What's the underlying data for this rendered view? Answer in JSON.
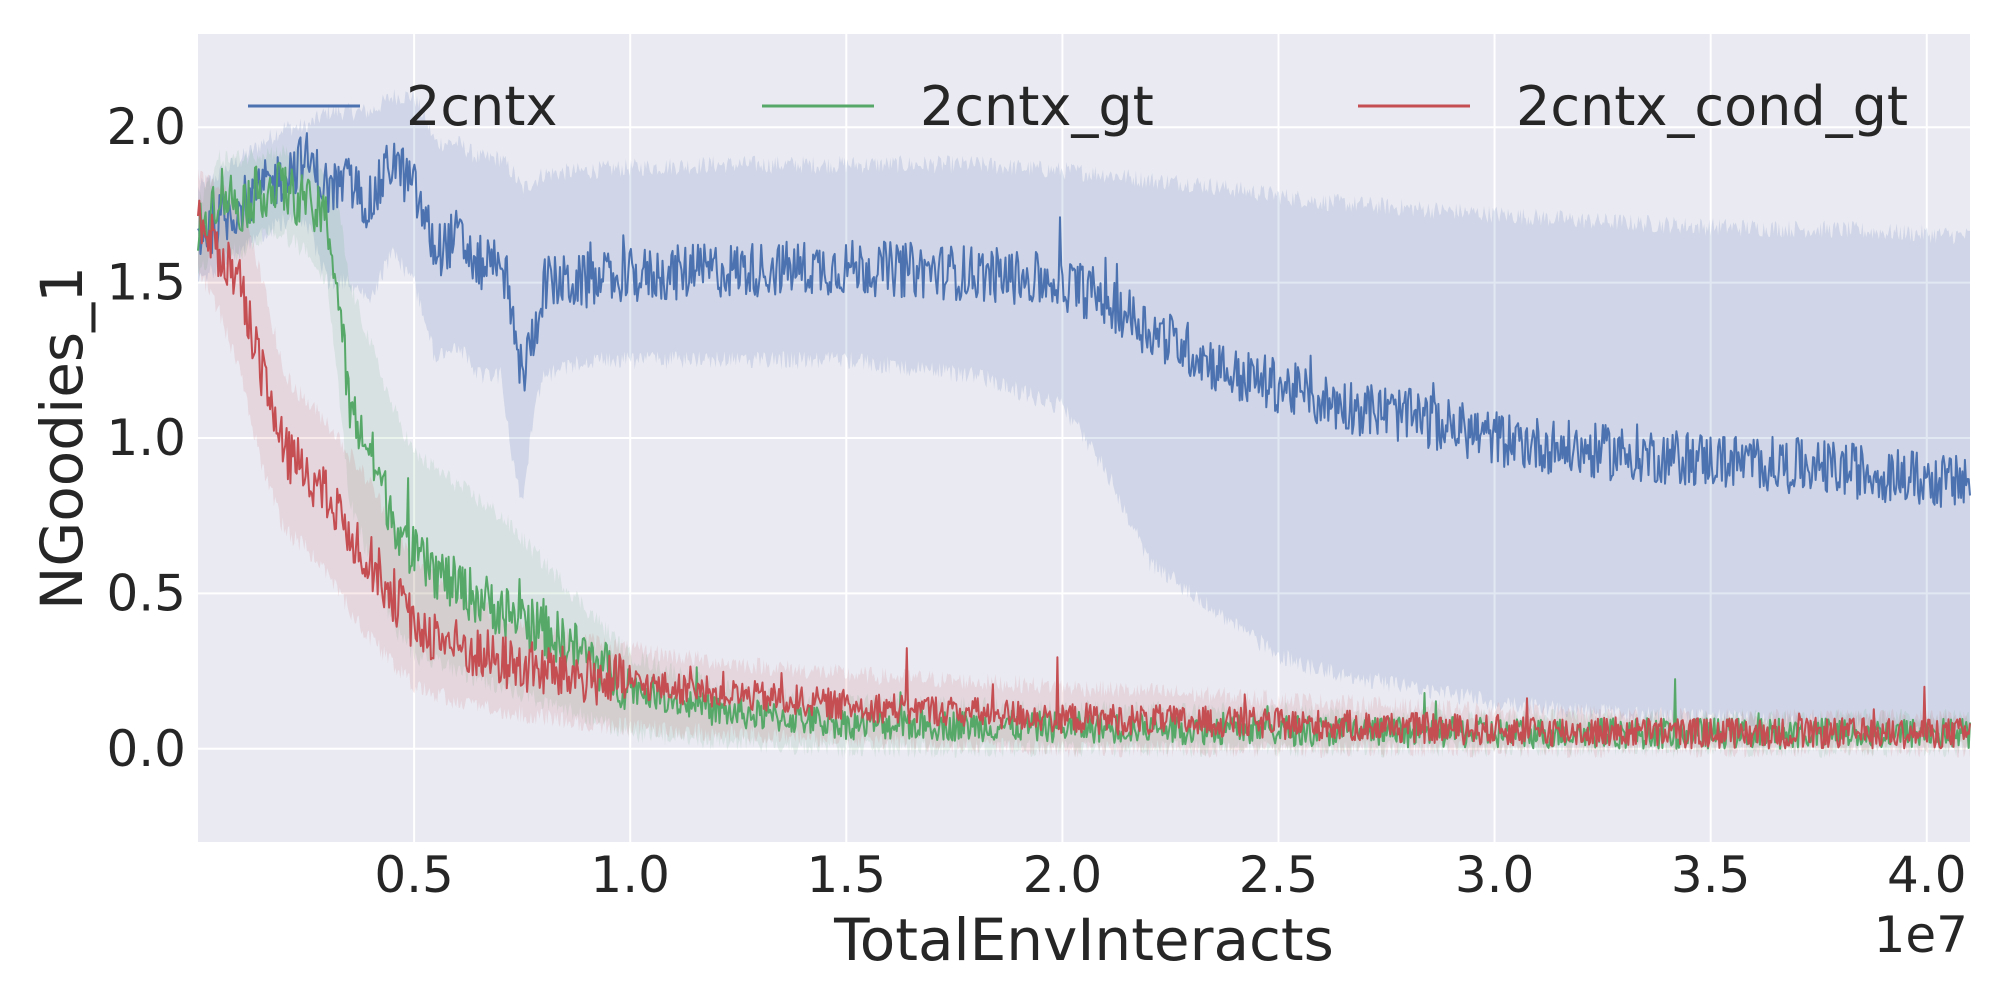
{
  "chart_data": {
    "type": "line",
    "xlabel": "TotalEnvInteracts",
    "ylabel": "NGoodies_1",
    "x_offset_label": "1e7",
    "xlim": [
      0.0,
      4.1
    ],
    "ylim": [
      -0.3,
      2.3
    ],
    "x_scale_factor": 10000000,
    "xticks": [
      0.5,
      1.0,
      1.5,
      2.0,
      2.5,
      3.0,
      3.5,
      4.0
    ],
    "xtick_labels": [
      "0.5",
      "1.0",
      "1.5",
      "2.0",
      "2.5",
      "3.0",
      "3.5",
      "4.0"
    ],
    "yticks": [
      0.0,
      0.5,
      1.0,
      1.5,
      2.0
    ],
    "ytick_labels": [
      "0.0",
      "0.5",
      "1.0",
      "1.5",
      "2.0"
    ],
    "grid": true,
    "legend_position": "top",
    "background_color": "#eaeaf2",
    "series": [
      {
        "name": "2cntx",
        "color": "#4c72b0",
        "x": [
          0.0,
          0.1,
          0.2,
          0.25,
          0.3,
          0.35,
          0.4,
          0.45,
          0.5,
          0.55,
          0.6,
          0.65,
          0.7,
          0.73,
          0.75,
          0.78,
          0.8,
          0.9,
          1.0,
          1.2,
          1.5,
          1.8,
          2.0,
          2.1,
          2.2,
          2.3,
          2.4,
          2.5,
          2.6,
          2.8,
          3.0,
          3.2,
          3.5,
          3.8,
          4.1
        ],
        "y": [
          1.65,
          1.75,
          1.85,
          1.9,
          1.8,
          1.82,
          1.75,
          1.9,
          1.8,
          1.6,
          1.65,
          1.55,
          1.6,
          1.35,
          1.2,
          1.35,
          1.5,
          1.5,
          1.52,
          1.54,
          1.55,
          1.53,
          1.5,
          1.45,
          1.35,
          1.28,
          1.2,
          1.17,
          1.12,
          1.07,
          1.0,
          0.96,
          0.93,
          0.9,
          0.85
        ],
        "band_low": [
          1.5,
          1.6,
          1.7,
          1.7,
          1.5,
          1.5,
          1.45,
          1.6,
          1.5,
          1.25,
          1.3,
          1.2,
          1.2,
          0.9,
          0.8,
          1.1,
          1.2,
          1.25,
          1.25,
          1.25,
          1.25,
          1.2,
          1.1,
          0.9,
          0.6,
          0.5,
          0.4,
          0.3,
          0.25,
          0.2,
          0.15,
          0.12,
          0.1,
          0.08,
          0.05
        ],
        "band_high": [
          1.8,
          1.9,
          2.0,
          2.0,
          2.05,
          2.05,
          2.05,
          2.1,
          2.1,
          1.95,
          1.95,
          1.9,
          1.9,
          1.85,
          1.8,
          1.83,
          1.85,
          1.86,
          1.87,
          1.88,
          1.88,
          1.88,
          1.86,
          1.85,
          1.83,
          1.82,
          1.8,
          1.78,
          1.76,
          1.74,
          1.72,
          1.7,
          1.68,
          1.67,
          1.65
        ]
      },
      {
        "name": "2cntx_gt",
        "color": "#55a868",
        "x": [
          0.0,
          0.05,
          0.1,
          0.15,
          0.2,
          0.25,
          0.3,
          0.33,
          0.35,
          0.4,
          0.45,
          0.5,
          0.6,
          0.7,
          0.8,
          0.9,
          1.0,
          1.2,
          1.5,
          2.0,
          2.5,
          3.0,
          3.5,
          4.1
        ],
        "y": [
          1.65,
          1.8,
          1.75,
          1.8,
          1.8,
          1.75,
          1.7,
          1.4,
          1.1,
          0.95,
          0.75,
          0.62,
          0.52,
          0.45,
          0.38,
          0.3,
          0.2,
          0.12,
          0.08,
          0.07,
          0.06,
          0.05,
          0.05,
          0.05
        ],
        "band_low": [
          1.55,
          1.6,
          1.6,
          1.65,
          1.65,
          1.6,
          1.5,
          1.1,
          0.8,
          0.6,
          0.4,
          0.3,
          0.25,
          0.2,
          0.15,
          0.1,
          0.05,
          0.02,
          0.0,
          0.0,
          0.0,
          0.0,
          0.0,
          0.0
        ],
        "band_high": [
          1.75,
          1.9,
          1.9,
          1.92,
          1.92,
          1.9,
          1.85,
          1.7,
          1.5,
          1.3,
          1.1,
          0.95,
          0.85,
          0.75,
          0.6,
          0.45,
          0.3,
          0.2,
          0.15,
          0.13,
          0.12,
          0.1,
          0.1,
          0.1
        ]
      },
      {
        "name": "2cntx_cond_gt",
        "color": "#c44e52",
        "x": [
          0.0,
          0.05,
          0.1,
          0.15,
          0.2,
          0.25,
          0.3,
          0.35,
          0.4,
          0.45,
          0.5,
          0.6,
          0.7,
          0.8,
          0.9,
          1.0,
          1.2,
          1.5,
          2.0,
          2.5,
          3.0,
          3.5,
          4.1
        ],
        "y": [
          1.7,
          1.6,
          1.5,
          1.2,
          0.95,
          0.9,
          0.8,
          0.7,
          0.6,
          0.5,
          0.4,
          0.33,
          0.28,
          0.25,
          0.23,
          0.21,
          0.18,
          0.14,
          0.1,
          0.08,
          0.06,
          0.05,
          0.05
        ],
        "band_low": [
          1.55,
          1.4,
          1.2,
          0.9,
          0.7,
          0.65,
          0.55,
          0.45,
          0.35,
          0.28,
          0.2,
          0.15,
          0.12,
          0.1,
          0.08,
          0.07,
          0.05,
          0.03,
          0.0,
          0.0,
          0.0,
          0.0,
          0.0
        ],
        "band_high": [
          1.85,
          1.8,
          1.75,
          1.5,
          1.2,
          1.12,
          1.05,
          0.95,
          0.85,
          0.72,
          0.6,
          0.5,
          0.42,
          0.38,
          0.35,
          0.32,
          0.28,
          0.24,
          0.2,
          0.16,
          0.12,
          0.1,
          0.1
        ]
      }
    ]
  }
}
